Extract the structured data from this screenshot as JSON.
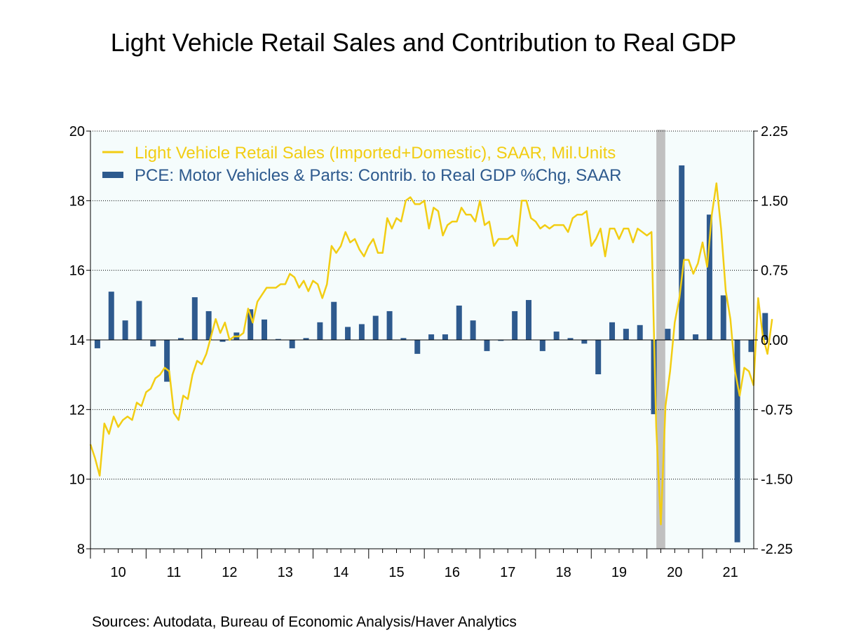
{
  "source_note": "Sources:  Autodata, Bureau of Economic Analysis/Haver Analytics",
  "colors": {
    "line": "#f2cd13",
    "bar": "#2e5a8e",
    "plot_bg": "#f5fcfc",
    "recession": "#c0c0c0",
    "legend_text_line": "#f2cd13",
    "legend_text_bar": "#2e5a8e"
  },
  "chart_data": {
    "type": "line+bar",
    "title": "Light Vehicle Retail Sales and Contribution to Real GDP",
    "x_tick_labels": [
      "10",
      "11",
      "12",
      "13",
      "14",
      "15",
      "16",
      "17",
      "18",
      "19",
      "20",
      "21"
    ],
    "x_start_year": 2010,
    "x_end_year": 2021.92,
    "left_axis": {
      "ylim": [
        8,
        20
      ],
      "ticks": [
        "20",
        "18",
        "16",
        "14",
        "12",
        "10",
        "8"
      ]
    },
    "right_axis": {
      "ylim": [
        -2.25,
        2.25
      ],
      "ticks": [
        "2.25",
        "1.50",
        "0.75",
        "0.00",
        "-0.75",
        "-1.50",
        "-2.25"
      ]
    },
    "grid": "horizontal dotted",
    "legend_position": "top-left",
    "recession_shading": [
      2020.17,
      2020.33
    ],
    "series": [
      {
        "name": "Light Vehicle Retail Sales (Imported+Domestic), SAAR, Mil.Units",
        "axis": "left",
        "kind": "line",
        "frequency": "monthly",
        "start": "2010-01",
        "values": [
          11.0,
          10.6,
          10.1,
          11.6,
          11.3,
          11.8,
          11.5,
          11.7,
          11.8,
          11.7,
          12.2,
          12.1,
          12.5,
          12.6,
          12.9,
          13.0,
          13.2,
          13.1,
          11.9,
          11.7,
          12.4,
          12.3,
          13.0,
          13.4,
          13.3,
          13.6,
          14.1,
          14.6,
          14.2,
          14.5,
          14.0,
          14.1,
          14.1,
          14.2,
          14.9,
          14.5,
          15.1,
          15.3,
          15.5,
          15.5,
          15.5,
          15.6,
          15.6,
          15.9,
          15.8,
          15.5,
          15.7,
          15.4,
          15.7,
          15.6,
          15.2,
          15.6,
          16.7,
          16.5,
          16.7,
          17.1,
          16.8,
          16.9,
          16.6,
          16.4,
          16.7,
          16.9,
          16.5,
          16.5,
          17.5,
          17.2,
          17.5,
          17.4,
          18.0,
          18.1,
          17.9,
          17.9,
          18.0,
          17.2,
          17.8,
          17.7,
          17.0,
          17.3,
          17.4,
          17.4,
          17.8,
          17.6,
          17.6,
          17.4,
          18.0,
          17.3,
          17.4,
          16.7,
          16.9,
          16.9,
          16.9,
          17.0,
          16.7,
          18.0,
          18.0,
          17.5,
          17.4,
          17.2,
          17.3,
          17.2,
          17.3,
          17.3,
          17.3,
          17.1,
          17.5,
          17.6,
          17.6,
          17.7,
          16.7,
          16.9,
          17.2,
          16.4,
          17.2,
          17.2,
          16.9,
          17.2,
          17.2,
          16.8,
          17.2,
          17.1,
          17.0,
          17.1,
          11.5,
          8.7,
          12.1,
          13.1,
          14.5,
          15.2,
          16.3,
          16.3,
          15.9,
          16.2,
          16.8,
          16.1,
          17.6,
          18.5,
          17.2,
          15.4,
          14.6,
          13.1,
          12.4,
          13.2,
          13.1,
          12.7,
          15.2,
          14.1,
          13.6,
          14.6
        ]
      },
      {
        "name": "PCE: Motor Vehicles & Parts: Contrib. to Real GDP %Chg, SAAR",
        "axis": "right",
        "kind": "bar",
        "frequency": "quarterly",
        "start": "2010-Q1",
        "values": [
          -0.09,
          0.52,
          0.21,
          0.42,
          -0.07,
          -0.45,
          0.02,
          0.46,
          0.31,
          -0.02,
          0.08,
          0.33,
          0.22,
          0.01,
          -0.09,
          0.02,
          0.19,
          0.41,
          0.14,
          0.17,
          0.26,
          0.31,
          0.02,
          -0.15,
          0.06,
          0.06,
          0.37,
          0.21,
          -0.12,
          -0.01,
          0.31,
          0.43,
          -0.12,
          0.09,
          0.02,
          -0.04,
          -0.37,
          0.19,
          0.12,
          0.16,
          -0.8,
          0.12,
          1.88,
          0.06,
          1.35,
          0.48,
          -2.18,
          -0.13,
          0.29
        ]
      }
    ]
  }
}
